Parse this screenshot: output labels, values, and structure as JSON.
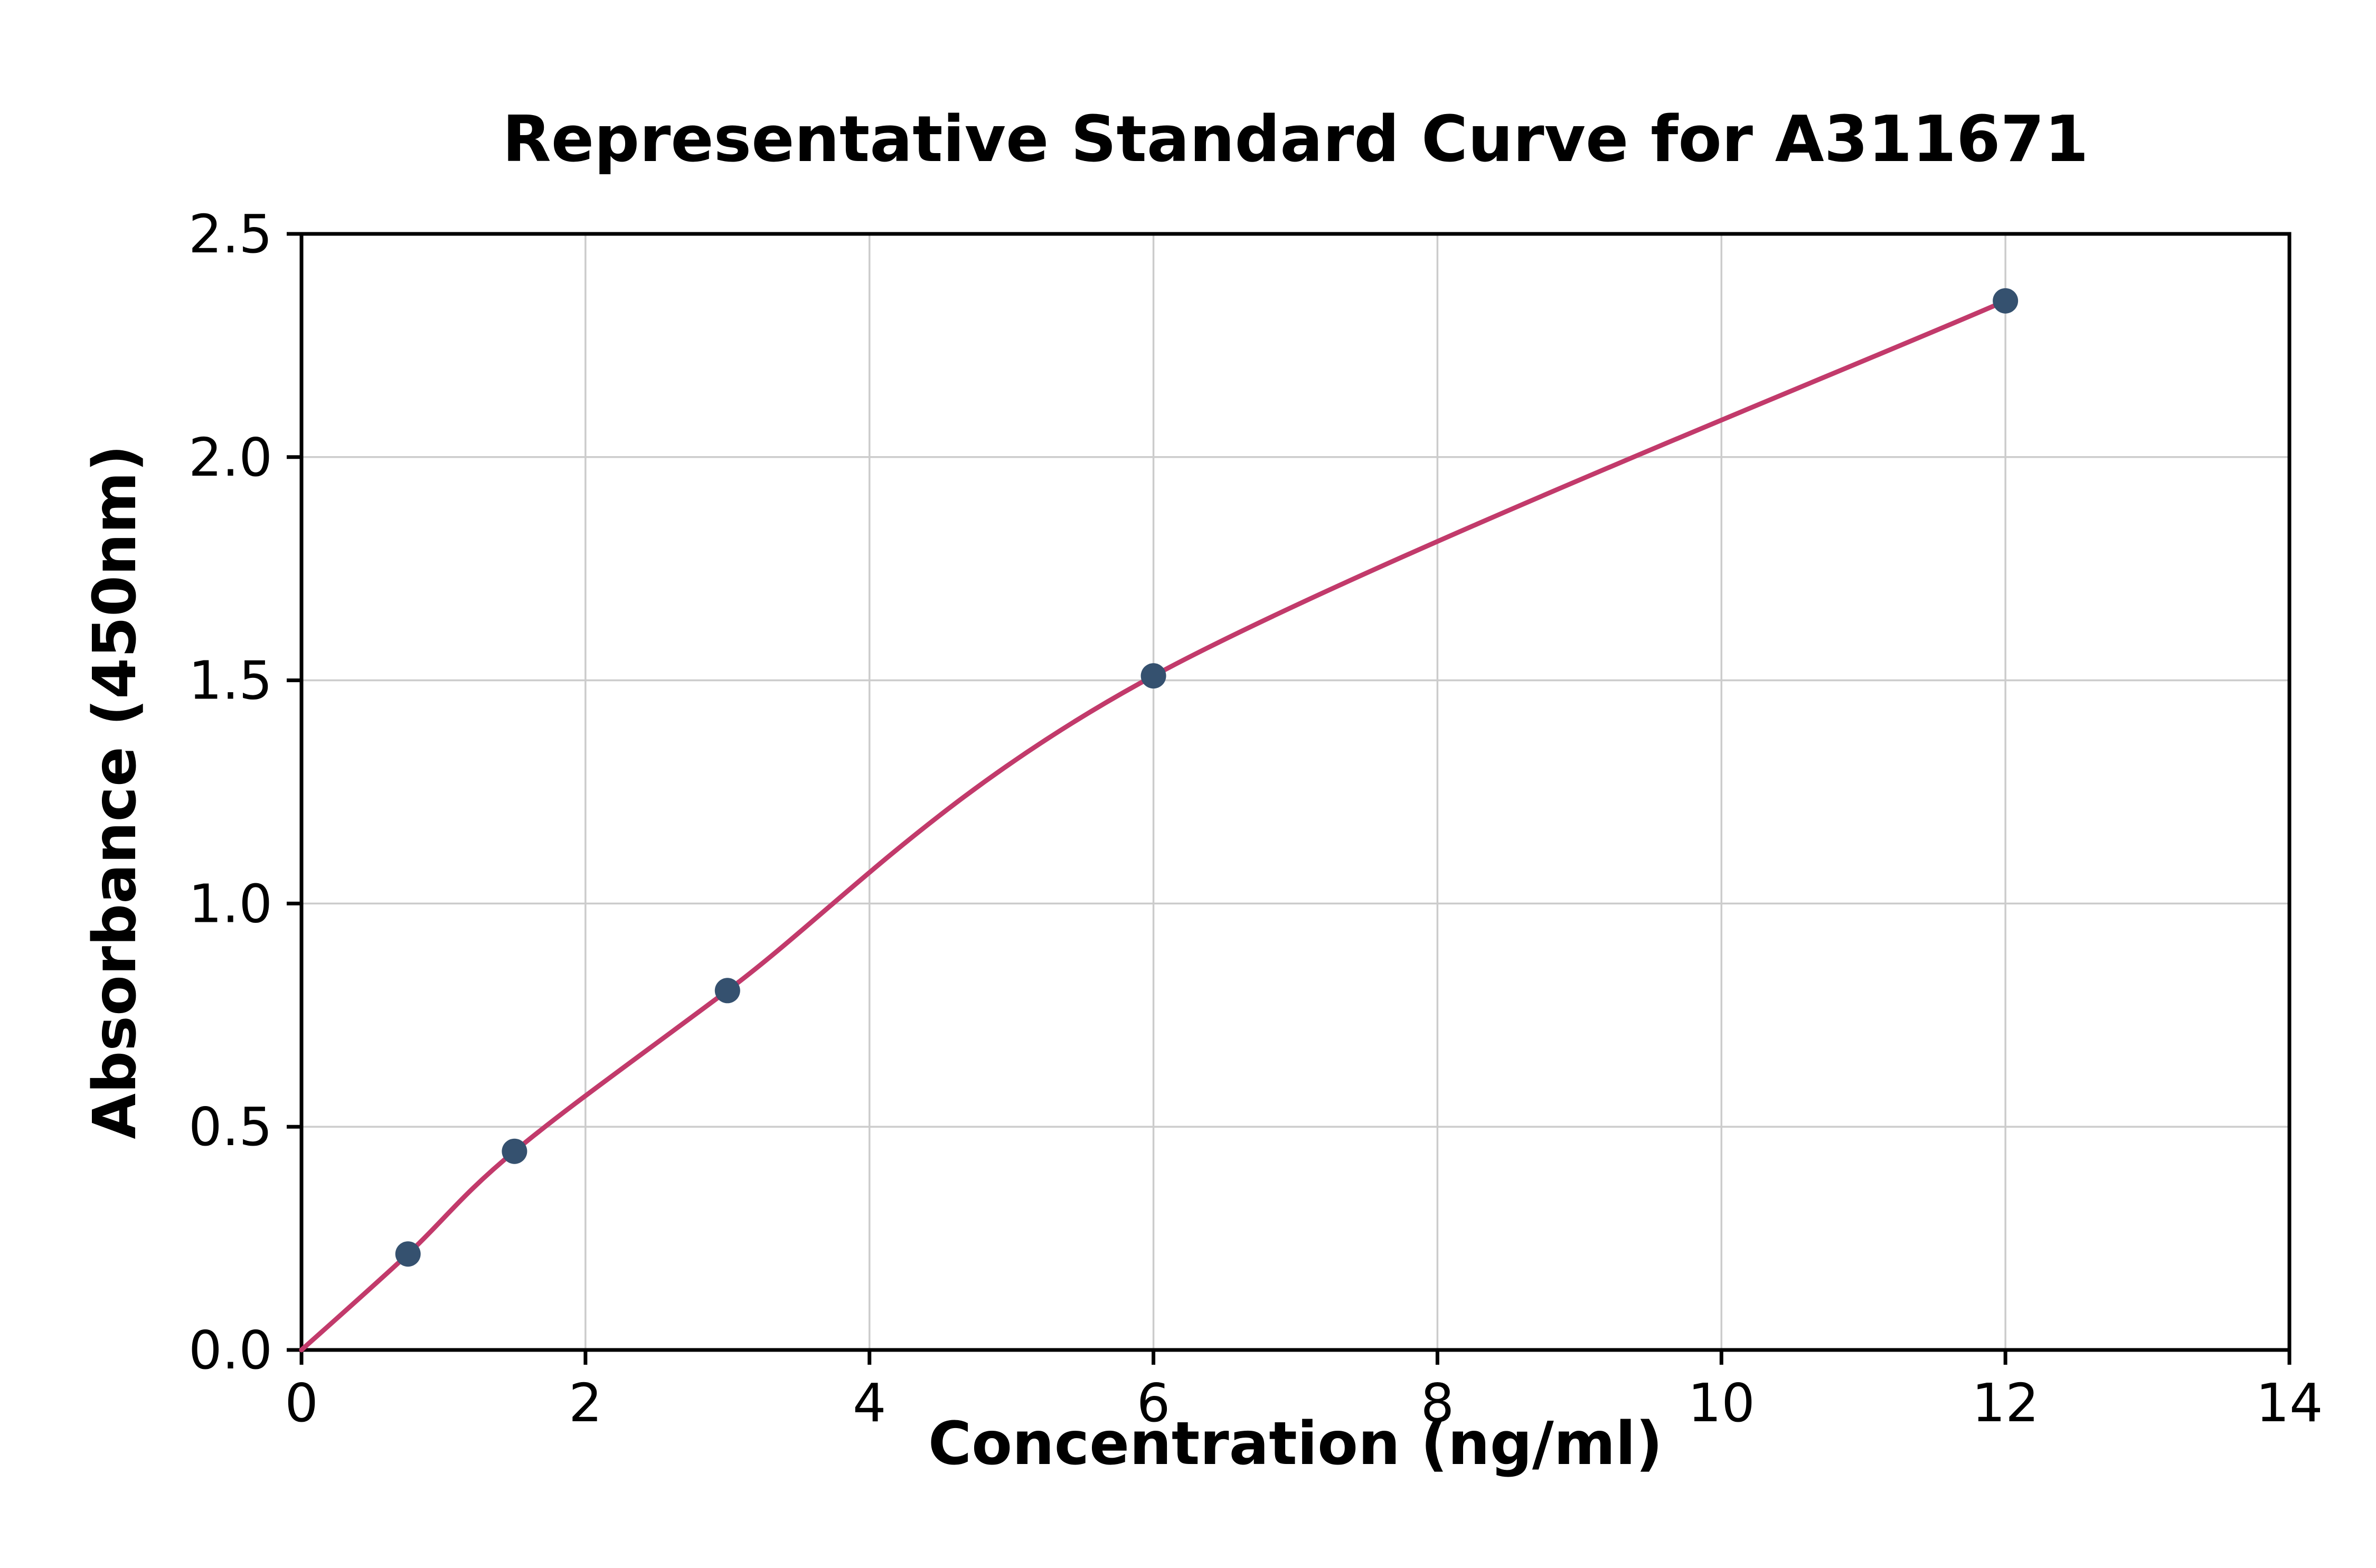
{
  "chart_data": {
    "type": "scatter",
    "title": "Representative Standard Curve for A311671",
    "xlabel": "Concentration (ng/ml)",
    "ylabel": "Absorbance (450nm)",
    "xlim": [
      0,
      14
    ],
    "ylim": [
      0,
      2.5
    ],
    "xticks": [
      0,
      2,
      4,
      6,
      8,
      10,
      12,
      14
    ],
    "xtick_labels": [
      "0",
      "2",
      "4",
      "6",
      "8",
      "10",
      "12",
      "14"
    ],
    "yticks": [
      0,
      0.5,
      1.0,
      1.5,
      2.0,
      2.5
    ],
    "ytick_labels": [
      "0.0",
      "0.5",
      "1.0",
      "1.5",
      "2.0",
      "2.5"
    ],
    "grid": true,
    "legend": "none",
    "points": {
      "x": [
        0.75,
        1.5,
        3,
        6,
        12
      ],
      "y": [
        0.215,
        0.445,
        0.805,
        1.51,
        2.35
      ]
    },
    "curve": {
      "x": [
        0,
        0.75,
        1.5,
        3,
        6,
        12
      ],
      "y": [
        0,
        0.215,
        0.445,
        0.805,
        1.51,
        2.35
      ]
    },
    "colors": {
      "curve": "#c23a6b",
      "marker": "#35516f",
      "grid": "#cccccc",
      "axis": "#000000",
      "background": "#ffffff"
    }
  }
}
